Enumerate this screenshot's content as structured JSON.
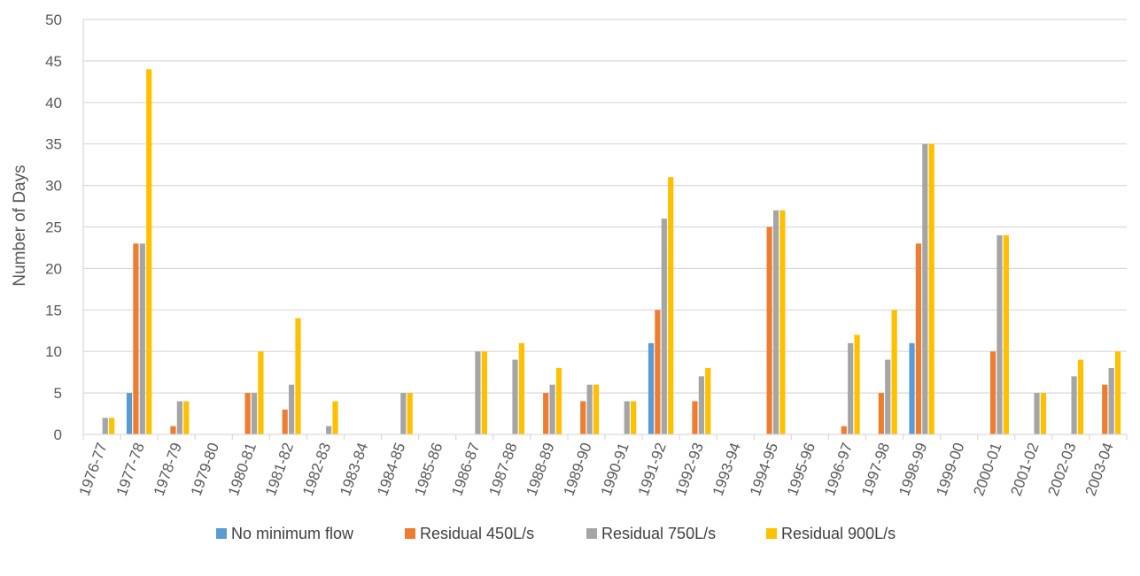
{
  "chart_data": {
    "type": "bar",
    "title": "",
    "xlabel": "",
    "ylabel": "Number of Days",
    "ylim": [
      0,
      50
    ],
    "yticks": [
      0,
      5,
      10,
      15,
      20,
      25,
      30,
      35,
      40,
      45,
      50
    ],
    "grid": true,
    "legend_position": "bottom",
    "categories": [
      "1976-77",
      "1977-78",
      "1978-79",
      "1979-80",
      "1980-81",
      "1981-82",
      "1982-83",
      "1983-84",
      "1984-85",
      "1985-86",
      "1986-87",
      "1987-88",
      "1988-89",
      "1989-90",
      "1990-91",
      "1991-92",
      "1992-93",
      "1993-94",
      "1994-95",
      "1995-96",
      "1996-97",
      "1997-98",
      "1998-99",
      "1999-00",
      "2000-01",
      "2001-02",
      "2002-03",
      "2003-04"
    ],
    "series": [
      {
        "name": "No minimum flow",
        "color": "#5B9BD5",
        "values": [
          0,
          5,
          0,
          0,
          0,
          0,
          0,
          0,
          0,
          0,
          0,
          0,
          0,
          0,
          0,
          11,
          0,
          0,
          0,
          0,
          0,
          0,
          11,
          0,
          0,
          0,
          0,
          0
        ]
      },
      {
        "name": "Residual 450L/s",
        "color": "#ED7D31",
        "values": [
          0,
          23,
          1,
          0,
          5,
          3,
          0,
          0,
          0,
          0,
          0,
          0,
          5,
          4,
          0,
          15,
          4,
          0,
          25,
          0,
          1,
          5,
          23,
          0,
          10,
          0,
          0,
          6
        ]
      },
      {
        "name": "Residual 750L/s",
        "color": "#A5A5A5",
        "values": [
          2,
          23,
          4,
          0,
          5,
          6,
          1,
          0,
          5,
          0,
          10,
          9,
          6,
          6,
          4,
          26,
          7,
          0,
          27,
          0,
          11,
          9,
          35,
          0,
          24,
          5,
          7,
          8
        ]
      },
      {
        "name": "Residual 900L/s",
        "color": "#FFC000",
        "values": [
          2,
          44,
          4,
          0,
          10,
          14,
          4,
          0,
          5,
          0,
          10,
          11,
          8,
          6,
          4,
          31,
          8,
          0,
          27,
          0,
          12,
          15,
          35,
          0,
          24,
          5,
          9,
          10
        ]
      }
    ]
  }
}
